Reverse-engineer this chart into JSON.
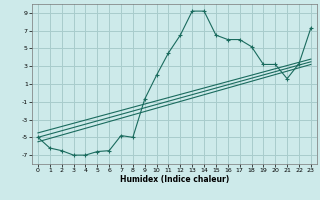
{
  "xlabel": "Humidex (Indice chaleur)",
  "background_color": "#cdeaea",
  "grid_color": "#a8cccc",
  "line_color": "#1a6b5e",
  "xlim": [
    -0.5,
    23.5
  ],
  "ylim": [
    -8,
    10
  ],
  "xticks": [
    0,
    1,
    2,
    3,
    4,
    5,
    6,
    7,
    8,
    9,
    10,
    11,
    12,
    13,
    14,
    15,
    16,
    17,
    18,
    19,
    20,
    21,
    22,
    23
  ],
  "yticks": [
    -7,
    -5,
    -3,
    -1,
    1,
    3,
    5,
    7,
    9
  ],
  "main_series_x": [
    0,
    1,
    2,
    3,
    4,
    5,
    6,
    7,
    8,
    9,
    10,
    11,
    12,
    13,
    14,
    15,
    16,
    17,
    18,
    19,
    20,
    21,
    22,
    23
  ],
  "main_series_y": [
    -5.0,
    -6.2,
    -6.5,
    -7.0,
    -7.0,
    -6.6,
    -6.5,
    -4.8,
    -5.0,
    -0.7,
    2.0,
    4.5,
    6.5,
    9.2,
    9.2,
    6.5,
    6.0,
    6.0,
    5.2,
    3.2,
    3.2,
    1.6,
    3.3,
    7.3
  ],
  "line2_x": [
    0,
    23
  ],
  "line2_y": [
    -5.5,
    3.2
  ],
  "line3_x": [
    0,
    23
  ],
  "line3_y": [
    -5.0,
    3.5
  ],
  "line4_x": [
    0,
    23
  ],
  "line4_y": [
    -4.5,
    3.8
  ]
}
